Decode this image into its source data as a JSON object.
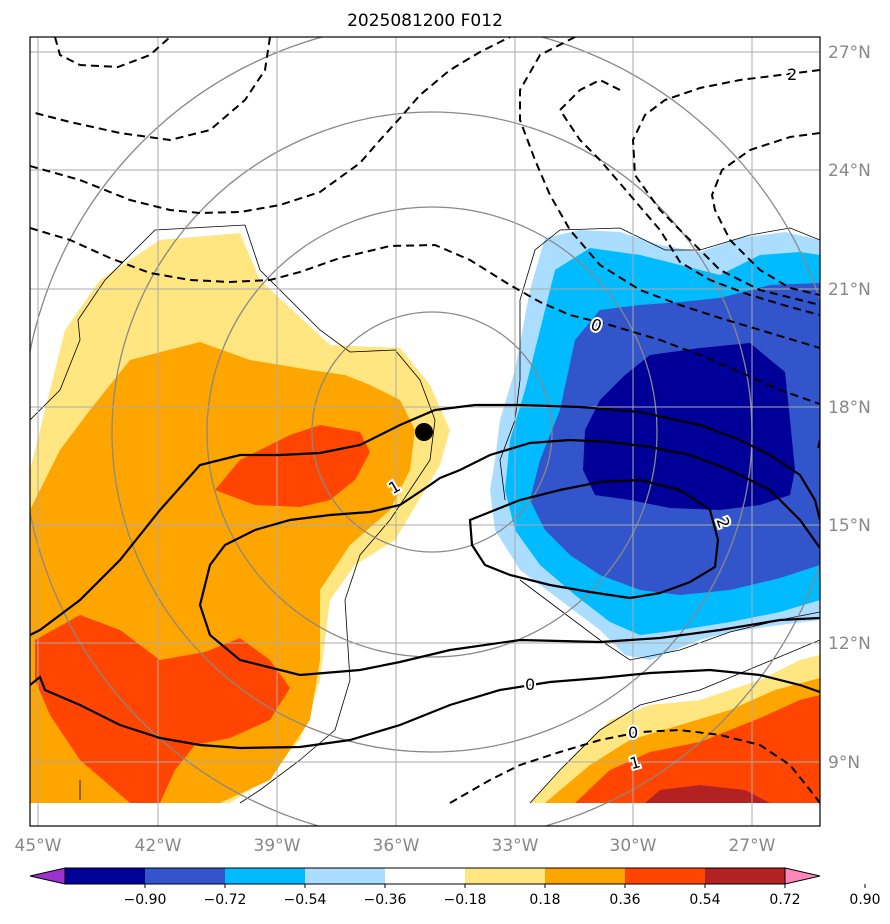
{
  "title": "2025081200 F012",
  "lon_ticks": [
    "45°W",
    "42°W",
    "39°W",
    "36°W",
    "33°W",
    "30°W",
    "27°W"
  ],
  "lat_ticks": [
    "27°N",
    "24°N",
    "21°N",
    "18°N",
    "15°N",
    "12°N",
    "9°N"
  ],
  "colorbar": {
    "labels": [
      "−0.90",
      "−0.72",
      "−0.54",
      "−0.36",
      "−0.18",
      "0.18",
      "0.36",
      "0.54",
      "0.72",
      "0.90"
    ],
    "colors": [
      "#9933cc",
      "#000099",
      "#3355cc",
      "#00bbff",
      "#aaddff",
      "#ffffff",
      "#ffe680",
      "#ffa500",
      "#ff4500",
      "#b22222",
      "#ff88bb"
    ]
  },
  "contour_labels": {
    "l2_top": "2",
    "l1_mid": "1",
    "l0_right": "0",
    "l2_right": "2",
    "l0_lower": "0",
    "l0_bottom": "0",
    "l1_bottom": "1"
  },
  "storm_marker": "storm-center"
}
